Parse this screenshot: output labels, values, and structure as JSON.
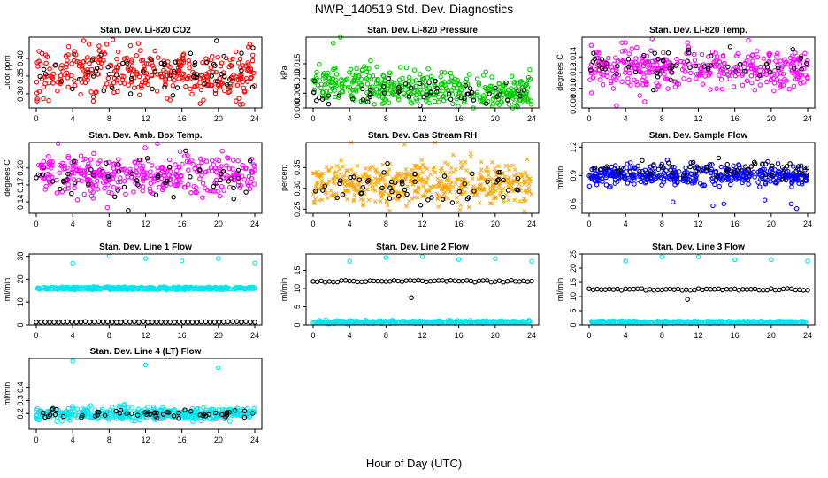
{
  "title": "NWR_140519  Std. Dev. Diagnostics",
  "xlabel": "Hour of Day (UTC)",
  "colors": {
    "black": "#000000",
    "red": "#ff0000",
    "green": "#00cc00",
    "magenta": "#ff00ff",
    "orange": "#ffa500",
    "blue": "#0000ff",
    "cyan": "#00e5ee"
  },
  "chart_data": [
    {
      "type": "scatter",
      "title": "Stan. Dev. Li-820 CO2",
      "ylabel": "Licor ppm",
      "xlim": [
        0,
        24
      ],
      "xticks": [
        0,
        4,
        8,
        12,
        16,
        20,
        24
      ],
      "ylim": [
        0.26,
        0.46
      ],
      "yticks": [
        0.3,
        0.35,
        0.4
      ],
      "ytick_labels": [
        "0.30",
        "0.35",
        "0.40"
      ],
      "series": [
        {
          "color": "#ff0000",
          "center": 0.36,
          "spread": 0.035,
          "n": 340,
          "outliers": [
            [
              0.1,
              0.28
            ],
            [
              5.2,
              0.45
            ],
            [
              5.8,
              0.44
            ],
            [
              22.4,
              0.27
            ]
          ]
        },
        {
          "color": "#000000",
          "center": 0.36,
          "spread": 0.03,
          "n": 55,
          "outliers": [
            [
              19.8,
              0.45
            ],
            [
              23.8,
              0.43
            ]
          ]
        }
      ]
    },
    {
      "type": "scatter",
      "title": "Stan. Dev. Li-820 Pressure",
      "ylabel": "kPa",
      "xlim": [
        0,
        24
      ],
      "xticks": [
        0,
        4,
        8,
        12,
        16,
        20,
        24
      ],
      "ylim": [
        0,
        0.024
      ],
      "yticks": [
        0.0,
        0.005,
        0.01,
        0.015
      ],
      "ytick_labels": [
        "0.000",
        "0.005",
        "0.010",
        "0.015"
      ],
      "series": [
        {
          "color": "#00cc00",
          "center": 0.0065,
          "spread": 0.0028,
          "n": 420,
          "trend": -0.00012,
          "outliers": [
            [
              2.2,
              0.022
            ],
            [
              3.0,
              0.024
            ],
            [
              5.4,
              0.013
            ],
            [
              6.3,
              0.016
            ],
            [
              7.0,
              0.014
            ],
            [
              23.8,
              0.013
            ]
          ]
        },
        {
          "color": "#000000",
          "center": 0.0055,
          "spread": 0.002,
          "n": 55
        }
      ]
    },
    {
      "type": "scatter",
      "title": "Stan. Dev. Li-820 Temp.",
      "ylabel": "degrees C",
      "xlim": [
        0,
        24
      ],
      "xticks": [
        0,
        4,
        8,
        12,
        16,
        20,
        24
      ],
      "ylim": [
        0.0075,
        0.0165
      ],
      "yticks": [
        0.008,
        0.01,
        0.012,
        0.014
      ],
      "ytick_labels": [
        "0.008",
        "0.010",
        "0.012",
        "0.014"
      ],
      "series": [
        {
          "color": "#ff00ff",
          "center": 0.0125,
          "spread": 0.0013,
          "n": 360,
          "outliers": [
            [
              3.0,
              0.0078
            ],
            [
              6.1,
              0.0083
            ],
            [
              3.6,
              0.0158
            ],
            [
              10.8,
              0.0158
            ]
          ]
        },
        {
          "color": "#000000",
          "center": 0.0128,
          "spread": 0.0012,
          "n": 55
        }
      ]
    },
    {
      "type": "scatter",
      "title": "Stan. Dev. Amb. Box Temp.",
      "ylabel": "degrees C",
      "xlim": [
        0,
        24
      ],
      "xticks": [
        0,
        4,
        8,
        12,
        16,
        20,
        24
      ],
      "ylim": [
        0.12,
        0.245
      ],
      "yticks": [
        0.14,
        0.17,
        0.2
      ],
      "ytick_labels": [
        "0.14",
        "0.17",
        "0.20"
      ],
      "series": [
        {
          "color": "#ff00ff",
          "center": 0.188,
          "spread": 0.017,
          "n": 360,
          "outliers": [
            [
              2.4,
              0.243
            ],
            [
              13.3,
              0.243
            ],
            [
              7.8,
              0.13
            ]
          ]
        },
        {
          "color": "#000000",
          "center": 0.185,
          "spread": 0.016,
          "n": 55,
          "outliers": [
            [
              10.1,
              0.125
            ]
          ]
        }
      ]
    },
    {
      "type": "scatter",
      "title": "Stan. Dev. Gas Stream RH",
      "ylabel": "percent",
      "xlim": [
        0,
        24
      ],
      "xticks": [
        0,
        4,
        8,
        12,
        16,
        20,
        24
      ],
      "ylim": [
        0.24,
        0.41
      ],
      "yticks": [
        0.25,
        0.3,
        0.35
      ],
      "ytick_labels": [
        "0.25",
        "0.30",
        "0.35"
      ],
      "series": [
        {
          "color": "#ffa500",
          "marker": "x",
          "center": 0.312,
          "spread": 0.025,
          "n": 520,
          "outliers": [
            [
              4.2,
              0.41
            ],
            [
              10.0,
              0.405
            ],
            [
              13.4,
              0.41
            ],
            [
              23.2,
              0.245
            ]
          ]
        },
        {
          "color": "#000000",
          "center": 0.31,
          "spread": 0.023,
          "n": 55
        }
      ]
    },
    {
      "type": "scatter",
      "title": "Stan. Dev. Sample Flow",
      "ylabel": "ml/min",
      "xlim": [
        0,
        24
      ],
      "xticks": [
        0,
        4,
        8,
        12,
        16,
        20,
        24
      ],
      "ylim": [
        0.5,
        1.25
      ],
      "yticks": [
        0.6,
        0.9,
        1.2
      ],
      "ytick_labels": [
        "0.6",
        "0.9",
        "1.2"
      ],
      "series": [
        {
          "color": "#0000ff",
          "center": 0.9,
          "spread": 0.055,
          "n": 420,
          "outliers": [
            [
              9.2,
              0.62
            ],
            [
              14.8,
              0.6
            ],
            [
              13.6,
              0.58
            ],
            [
              22.2,
              0.6
            ],
            [
              22.8,
              0.55
            ],
            [
              19.3,
              0.64
            ]
          ]
        },
        {
          "color": "#000000",
          "center": 0.98,
          "spread": 0.05,
          "n": 55
        }
      ]
    },
    {
      "type": "scatter",
      "title": "Stan. Dev. Line 1 Flow",
      "ylabel": "ml/min",
      "xlim": [
        0,
        24
      ],
      "xticks": [
        0,
        4,
        8,
        12,
        16,
        20,
        24
      ],
      "ylim": [
        0,
        31
      ],
      "yticks": [
        0,
        10,
        20,
        30
      ],
      "ytick_labels": [
        "0",
        "10",
        "20",
        "30"
      ],
      "series": [
        {
          "color": "#00e5ee",
          "center": 16,
          "spread": 0.3,
          "n": 380,
          "outliers": [
            [
              4,
              27
            ],
            [
              8,
              30
            ],
            [
              12,
              29
            ],
            [
              16,
              28
            ],
            [
              20,
              29
            ],
            [
              24,
              27
            ]
          ]
        },
        {
          "color": "#000000",
          "center": 1.3,
          "spread": 0.15,
          "n": 50,
          "regular": true
        }
      ]
    },
    {
      "type": "scatter",
      "title": "Stan. Dev. Line 2 Flow",
      "ylabel": "ml/min",
      "xlim": [
        0,
        24
      ],
      "xticks": [
        0,
        4,
        8,
        12,
        16,
        20,
        24
      ],
      "ylim": [
        0,
        19.5
      ],
      "yticks": [
        0,
        5,
        10,
        15
      ],
      "ytick_labels": [
        "0",
        "5",
        "10",
        "15"
      ],
      "series": [
        {
          "color": "#00e5ee",
          "center": 0.8,
          "spread": 0.2,
          "n": 380,
          "outliers": [
            [
              4,
              17.5
            ],
            [
              8,
              18.5
            ],
            [
              12,
              18.8
            ],
            [
              16,
              18
            ],
            [
              20,
              18.2
            ],
            [
              24,
              17.5
            ]
          ]
        },
        {
          "color": "#000000",
          "center": 12,
          "spread": 0.25,
          "n": 55,
          "regular": true,
          "outliers": [
            [
              10.8,
              7.5
            ]
          ]
        }
      ]
    },
    {
      "type": "scatter",
      "title": "Stan. Dev. Line 3 Flow",
      "ylabel": "ml/min",
      "xlim": [
        0,
        24
      ],
      "xticks": [
        0,
        4,
        8,
        12,
        16,
        20,
        24
      ],
      "ylim": [
        0,
        25
      ],
      "yticks": [
        0,
        5,
        10,
        15,
        20,
        25
      ],
      "ytick_labels": [
        "0",
        "5",
        "10",
        "15",
        "20",
        "25"
      ],
      "series": [
        {
          "color": "#00e5ee",
          "center": 1.0,
          "spread": 0.2,
          "n": 380,
          "outliers": [
            [
              4,
              22.5
            ],
            [
              8,
              24
            ],
            [
              12,
              24
            ],
            [
              16,
              23
            ],
            [
              20,
              23
            ],
            [
              24,
              22.5
            ]
          ]
        },
        {
          "color": "#000000",
          "center": 12.5,
          "spread": 0.3,
          "n": 55,
          "regular": true,
          "outliers": [
            [
              10.8,
              9
            ]
          ]
        }
      ]
    },
    {
      "type": "scatter",
      "title": "Stan. Dev. Line 4 (LT) Flow",
      "ylabel": "ml/min",
      "xlim": [
        0,
        24
      ],
      "xticks": [
        0,
        4,
        8,
        12,
        16,
        20,
        24
      ],
      "ylim": [
        0.08,
        0.62
      ],
      "yticks": [
        0.2,
        0.3,
        0.4
      ],
      "ytick_labels": [
        "0.2",
        "0.3",
        "0.4"
      ],
      "series": [
        {
          "color": "#00e5ee",
          "center": 0.2,
          "spread": 0.025,
          "n": 420,
          "outliers": [
            [
              4,
              0.6
            ],
            [
              12,
              0.57
            ],
            [
              20,
              0.55
            ]
          ]
        },
        {
          "color": "#000000",
          "center": 0.2,
          "spread": 0.02,
          "n": 55
        }
      ]
    }
  ]
}
